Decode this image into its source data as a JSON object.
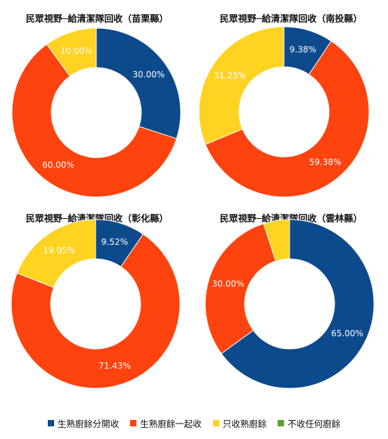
{
  "colors": {
    "生熟廚餘分開收": "#0d4a8c",
    "生熟廚餘一起收": "#ff430e",
    "只收熟廚餘": "#ffd321",
    "不收任何廚餘": "#54a32b"
  },
  "legend": [
    "生熟廚餘分開收",
    "生熟廚餘一起收",
    "只收熟廚餘",
    "不收任何廚餘"
  ],
  "chart_data": [
    {
      "type": "pie",
      "style": "donut",
      "title": "民眾視野─給清潔隊回收（苗栗縣）",
      "categories": [
        "生熟廚餘分開收",
        "生熟廚餘一起收",
        "只收熟廚餘",
        "不收任何廚餘"
      ],
      "values": [
        30.0,
        60.0,
        10.0,
        0
      ],
      "value_labels": [
        "30.00%",
        "60.00%",
        "10.00%",
        ""
      ]
    },
    {
      "type": "pie",
      "style": "donut",
      "title": "民眾視野─給清潔隊回收（南投縣）",
      "categories": [
        "生熟廚餘分開收",
        "生熟廚餘一起收",
        "只收熟廚餘",
        "不收任何廚餘"
      ],
      "values": [
        9.38,
        59.38,
        31.25,
        0
      ],
      "value_labels": [
        "9.38%",
        "59.38%",
        "31.25%",
        ""
      ]
    },
    {
      "type": "pie",
      "style": "donut",
      "title": "民眾視野─給清潔隊回收（彰化縣）",
      "categories": [
        "生熟廚餘分開收",
        "生熟廚餘一起收",
        "只收熟廚餘",
        "不收任何廚餘"
      ],
      "values": [
        9.52,
        71.43,
        19.05,
        0
      ],
      "value_labels": [
        "9.52%",
        "71.43%",
        "19.05%",
        ""
      ]
    },
    {
      "type": "pie",
      "style": "donut",
      "title": "民眾視野─給清潔隊回收（雲林縣）",
      "categories": [
        "生熟廚餘分開收",
        "生熟廚餘一起收",
        "只收熟廚餘",
        "不收任何廚餘"
      ],
      "values": [
        65.0,
        30.0,
        5.0,
        0
      ],
      "value_labels": [
        "65.00%",
        "30.00%",
        "",
        ""
      ]
    }
  ]
}
